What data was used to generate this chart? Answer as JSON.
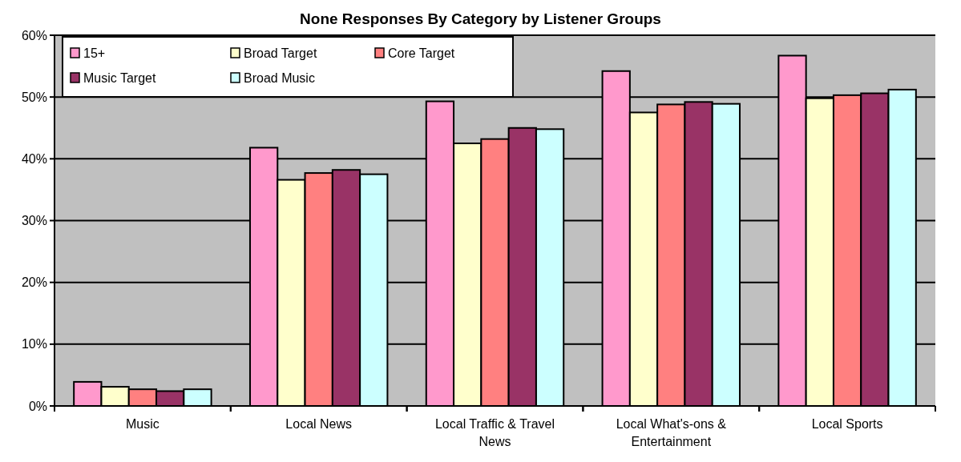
{
  "chart_data": {
    "type": "bar",
    "title": "None Responses By Category by Listener Groups",
    "categories": [
      "Music",
      "Local News",
      "Local Traffic & Travel News",
      "Local What's-ons & Entertainment",
      "Local Sports"
    ],
    "series": [
      {
        "name": "15+",
        "color": "#ff99cc",
        "values": [
          3.9,
          41.8,
          49.3,
          54.2,
          56.7
        ]
      },
      {
        "name": "Broad Target",
        "color": "#ffffcc",
        "values": [
          3.1,
          36.6,
          42.5,
          47.5,
          49.8
        ]
      },
      {
        "name": "Core Target",
        "color": "#ff8080",
        "values": [
          2.7,
          37.7,
          43.2,
          48.8,
          50.3
        ]
      },
      {
        "name": "Music Target",
        "color": "#993366",
        "values": [
          2.4,
          38.2,
          45.0,
          49.2,
          50.6
        ]
      },
      {
        "name": "Broad Music",
        "color": "#ccffff",
        "values": [
          2.7,
          37.5,
          44.8,
          48.9,
          51.2
        ]
      }
    ],
    "ylim": [
      0,
      60
    ],
    "yticks": [
      {
        "value": 0,
        "label": "0%"
      },
      {
        "value": 10,
        "label": "10%"
      },
      {
        "value": 20,
        "label": "20%"
      },
      {
        "value": 30,
        "label": "30%"
      },
      {
        "value": 40,
        "label": "40%"
      },
      {
        "value": 50,
        "label": "50%"
      },
      {
        "value": 60,
        "label": "60%"
      }
    ],
    "grid": "y",
    "legend": "top left"
  }
}
